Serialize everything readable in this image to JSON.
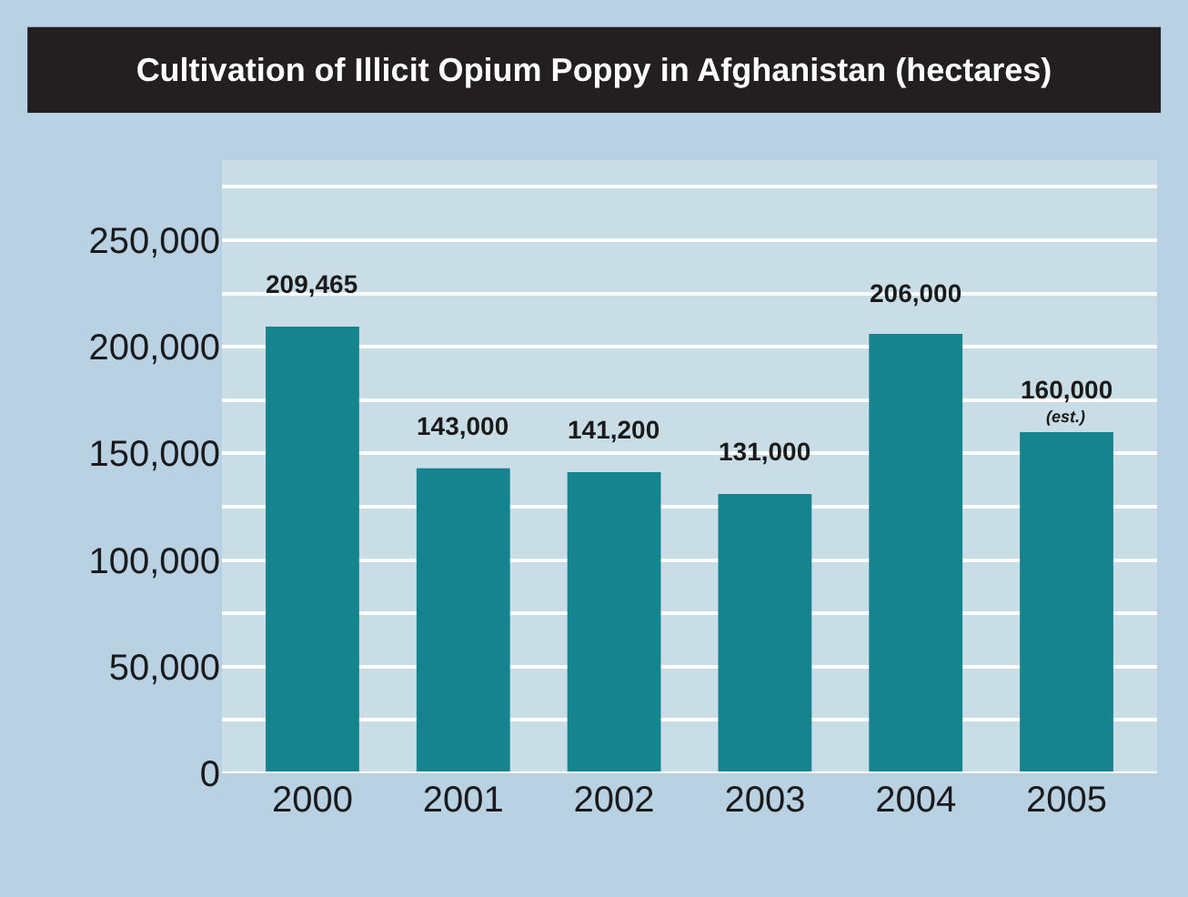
{
  "chart_data": {
    "type": "bar",
    "title": "Cultivation of Illicit Opium Poppy in Afghanistan (hectares)",
    "categories": [
      "2000",
      "2001",
      "2002",
      "2003",
      "2004",
      "2005"
    ],
    "values": [
      209465,
      143000,
      141200,
      131000,
      206000,
      160000
    ],
    "color": "#16848f",
    "value_labels": [
      "209,465",
      "143,000",
      "141,200",
      "131,000",
      "206,000",
      "160,000"
    ],
    "annotations": [
      {
        "text": "(est.)",
        "x": "2005",
        "y": 160000
      }
    ],
    "ylim": [
      0,
      287500
    ],
    "yticks": [
      0,
      {
        "value": 25000,
        "label": null
      },
      {
        "value": 50000,
        "label": "50,000"
      },
      {
        "value": 75000,
        "label": null
      },
      {
        "value": 100000,
        "label": "100,000"
      },
      {
        "value": 125000,
        "label": null
      },
      {
        "value": 150000,
        "label": "150,000"
      },
      {
        "value": 175000,
        "label": null
      },
      {
        "value": 200000,
        "label": "200,000"
      },
      {
        "value": 225000,
        "label": null
      },
      {
        "value": 250000,
        "label": "250,000"
      },
      {
        "value": 275000,
        "label": null
      }
    ],
    "grid": "y",
    "legend": false
  }
}
